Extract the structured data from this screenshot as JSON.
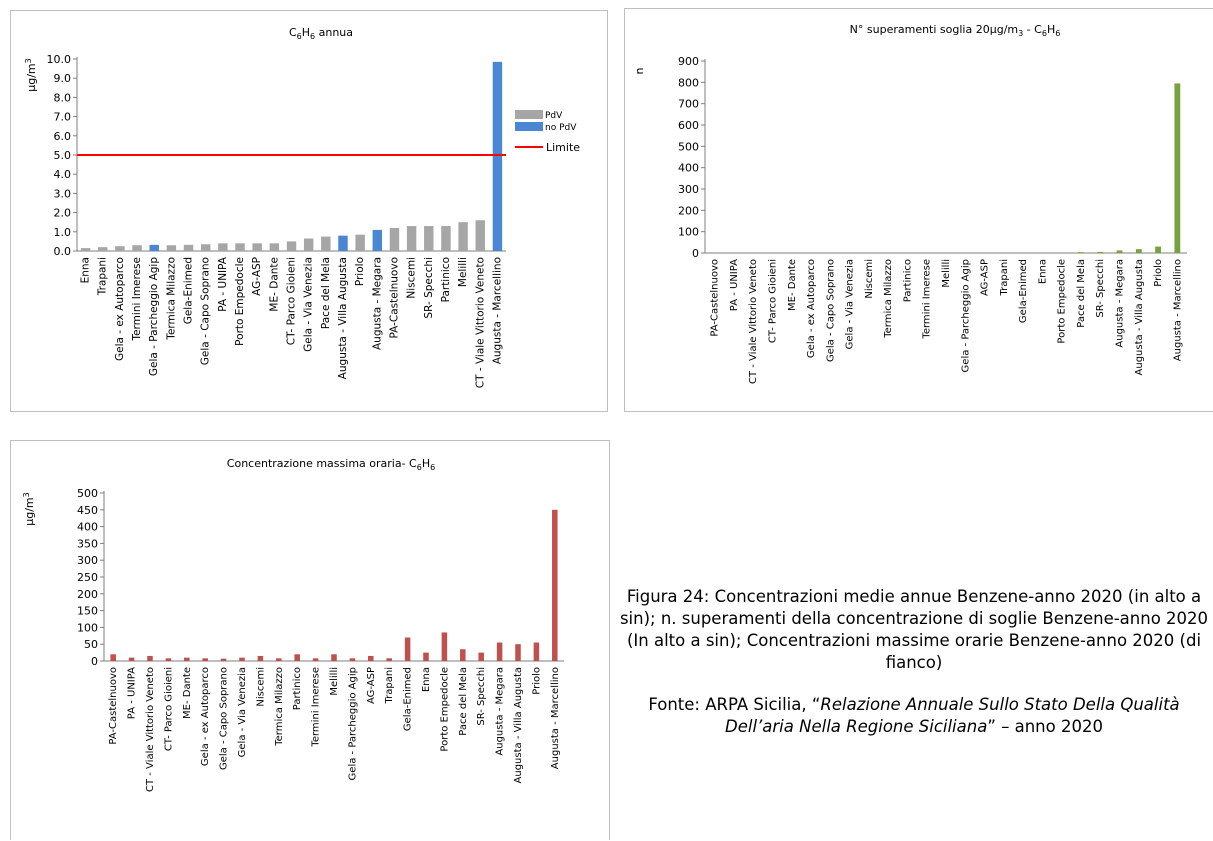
{
  "chart_data": [
    {
      "type": "bar",
      "title": "C6H6 annua",
      "title_parts": {
        "t1": "C",
        "s1": "6",
        "t2": "H",
        "s2": "6",
        "t3": " annua"
      },
      "ylabel": "µg/m3",
      "ylabel_parts": {
        "base": "µg/m",
        "sup": "3"
      },
      "ylim": [
        0,
        10
      ],
      "yticks": [
        "0.0",
        "1.0",
        "2.0",
        "3.0",
        "4.0",
        "5.0",
        "6.0",
        "7.0",
        "8.0",
        "9.0",
        "10.0"
      ],
      "categories": [
        "Enna",
        "Trapani",
        "Gela - ex Autoparco",
        "Termini Imerese",
        "Gela - Parcheggio Agip",
        "Termica Milazzo",
        "Gela-Enimed",
        "Gela - Capo Soprano",
        "PA - UNIPA",
        "Porto Empedocle",
        "AG-ASP",
        "ME- Dante",
        "CT- Parco Gioieni",
        "Gela - Via Venezia",
        "Pace del Mela",
        "Augusta - Villa Augusta",
        "Priolo",
        "Augusta - Megara",
        "PA-Castelnuovo",
        "Niscemi",
        "SR- Specchi",
        "Partinico",
        "Melilli",
        "CT - Viale Vittorio Veneto",
        "Augusta - Marcellino"
      ],
      "values": [
        0.15,
        0.2,
        0.25,
        0.3,
        0.32,
        0.3,
        0.32,
        0.35,
        0.4,
        0.4,
        0.4,
        0.4,
        0.5,
        0.65,
        0.75,
        0.8,
        0.85,
        1.1,
        1.2,
        1.3,
        1.3,
        1.3,
        1.5,
        1.6,
        9.85
      ],
      "groups": [
        "PdV",
        "PdV",
        "PdV",
        "PdV",
        "no PdV",
        "PdV",
        "PdV",
        "PdV",
        "PdV",
        "PdV",
        "PdV",
        "PdV",
        "PdV",
        "PdV",
        "PdV",
        "no PdV",
        "PdV",
        "no PdV",
        "PdV",
        "PdV",
        "PdV",
        "PdV",
        "PdV",
        "PdV",
        "no PdV"
      ],
      "limit": 5.0,
      "legend": {
        "pdv": "PdV",
        "nopdv": "no PdV",
        "limit": "Limite"
      },
      "legend_position": "right",
      "colors": {
        "pdv": "#a6a6a6",
        "nopdv": "#4a86d4",
        "limit": "#ff0000"
      },
      "grid": false
    },
    {
      "type": "bar",
      "title": "N° superamenti soglia 20µg/m3 - C6H6",
      "title_parts": {
        "t1": "N° superamenti soglia 20µg/m",
        "sup": "3",
        "t2": " - C",
        "s1": "6",
        "t3": "H",
        "s2": "6"
      },
      "ylabel": "n",
      "ylim": [
        0,
        900
      ],
      "yticks": [
        "0",
        "100",
        "200",
        "300",
        "400",
        "500",
        "600",
        "700",
        "800",
        "900"
      ],
      "categories": [
        "PA-Castelnuovo",
        "PA - UNIPA",
        "CT - Viale Vittorio Veneto",
        "CT- Parco Gioieni",
        "ME- Dante",
        "Gela - ex Autoparco",
        "Gela - Capo Soprano",
        "Gela - Via Venezia",
        "Niscemi",
        "Termica Milazzo",
        "Partinico",
        "Termini Imerese",
        "Melilli",
        "Gela - Parcheggio Agip",
        "AG-ASP",
        "Trapani",
        "Gela-Enimed",
        "Enna",
        "Porto Empedocle",
        "Pace del Mela",
        "SR- Specchi",
        "Augusta - Megara",
        "Augusta - Villa Augusta",
        "Priolo",
        "Augusta - Marcellino"
      ],
      "values": [
        0,
        0,
        0,
        0,
        0,
        0,
        0,
        0,
        0,
        0,
        0,
        0,
        0,
        0,
        0,
        0,
        0,
        0,
        0,
        4,
        5,
        12,
        18,
        30,
        795
      ],
      "color": "#77a03f",
      "grid": false
    },
    {
      "type": "bar",
      "title": "Concentrazione massima oraria- C6H6",
      "title_parts": {
        "t1": "Concentrazione massima oraria- C",
        "s1": "6",
        "t2": "H",
        "s2": "6"
      },
      "ylabel": "µg/m3",
      "ylabel_parts": {
        "base": "µg/m",
        "sup": "3"
      },
      "ylim": [
        0,
        500
      ],
      "yticks": [
        "0",
        "50",
        "100",
        "150",
        "200",
        "250",
        "300",
        "350",
        "400",
        "450",
        "500"
      ],
      "categories": [
        "PA-Castelnuovo",
        "PA - UNIPA",
        "CT - Viale Vittorio Veneto",
        "CT- Parco Gioieni",
        "ME- Dante",
        "Gela - ex Autoparco",
        "Gela - Capo Soprano",
        "Gela - Via Venezia",
        "Niscemi",
        "Termica Milazzo",
        "Partinico",
        "Termini Imerese",
        "Melilli",
        "Gela - Parcheggio Agip",
        "AG-ASP",
        "Trapani",
        "Gela-Enimed",
        "Enna",
        "Porto Empedocle",
        "Pace del Mela",
        "SR- Specchi",
        "Augusta - Megara",
        "Augusta - Villa Augusta",
        "Priolo",
        "Augusta - Marcellino"
      ],
      "values": [
        20,
        10,
        15,
        8,
        10,
        8,
        7,
        10,
        15,
        8,
        20,
        8,
        20,
        8,
        15,
        8,
        70,
        25,
        85,
        35,
        25,
        55,
        50,
        55,
        450
      ],
      "color": "#c0504d",
      "grid": false
    }
  ],
  "caption": {
    "text": "Figura 24: Concentrazioni medie annue Benzene-anno 2020 (in alto a sin); n. superamenti della concentrazione di soglie Benzene-anno 2020 (In alto a sin); Concentrazioni massime orarie Benzene-anno 2020 (di fianco)",
    "source_prefix": "Fonte: ARPA Sicilia, “",
    "source_title": "Relazione Annuale Sullo Stato Della Qualità Dell’aria Nella Regione Siciliana",
    "source_suffix": "” – anno 2020"
  }
}
